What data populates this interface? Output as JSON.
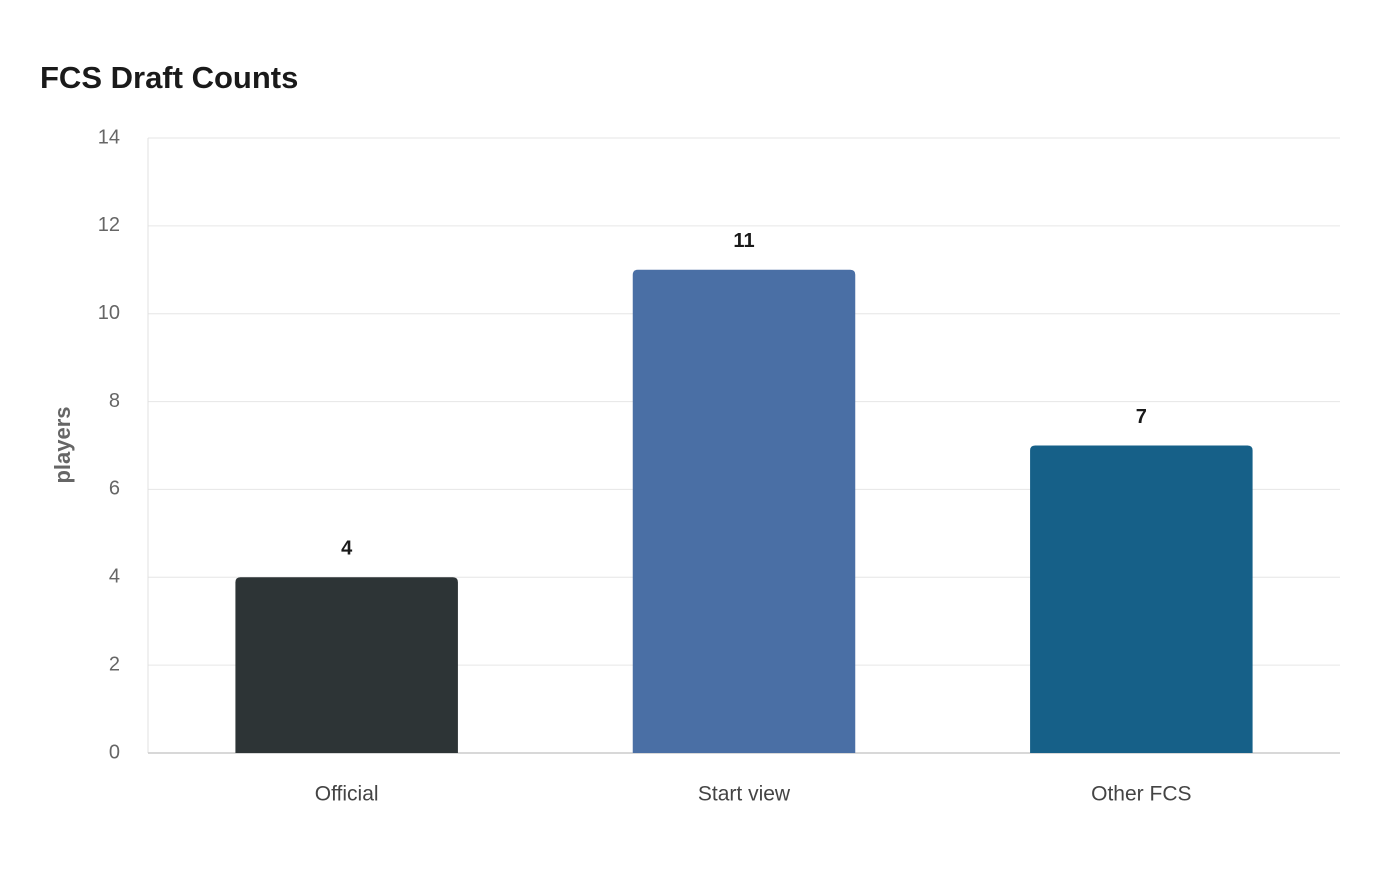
{
  "chart_data": {
    "type": "bar",
    "title": "FCS Draft Counts",
    "y_label": "players",
    "categories": [
      "Official",
      "Start view",
      "Other FCS"
    ],
    "values": [
      4,
      11,
      7
    ],
    "colors": [
      "#2d3436",
      "#4a6fa5",
      "#166088"
    ],
    "ylim": [
      0,
      14
    ],
    "yticks": [
      0,
      2,
      4,
      6,
      8,
      10,
      12,
      14
    ],
    "grid": true,
    "data_labels": true
  }
}
